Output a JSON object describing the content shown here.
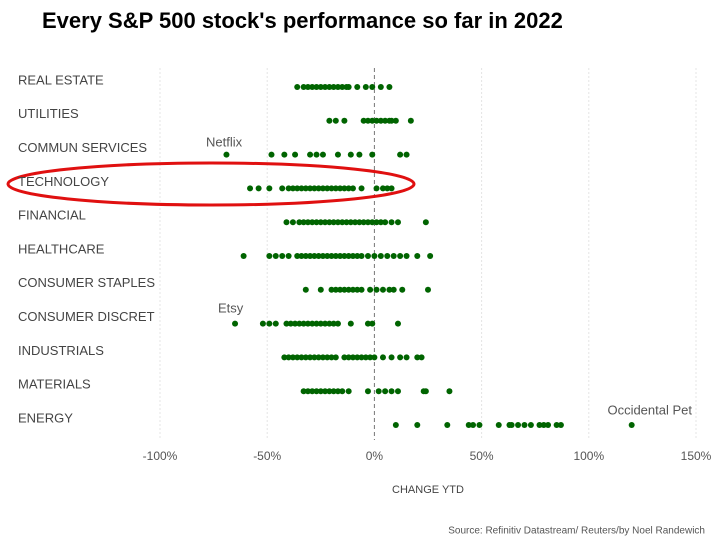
{
  "chart_data": {
    "type": "strip",
    "title": "Every S&P 500 stock's performance so far in 2022",
    "x_label": "CHANGE YTD",
    "source": "Source: Refinitiv Datastream/ Reuters/by Noel Randewich",
    "color": "#006400",
    "categories": [
      "REAL ESTATE",
      "UTILITIES",
      "COMMUN SERVICES",
      "TECHNOLOGY",
      "FINANCIAL",
      "HEALTHCARE",
      "CONSUMER STAPLES",
      "CONSUMER DISCRET",
      "INDUSTRIALS",
      "MATERIALS",
      "ENERGY"
    ],
    "values": [
      [
        -36,
        -33,
        -31,
        -29,
        -27,
        -25,
        -23,
        -21,
        -19,
        -17,
        -15,
        -13,
        -12,
        -8,
        -4,
        -1,
        3,
        7
      ],
      [
        -21,
        -18,
        -14,
        -5,
        -3,
        -1,
        1,
        3,
        5,
        7,
        8,
        10,
        17
      ],
      [
        -69,
        -48,
        -42,
        -37,
        -30,
        -27,
        -24,
        -17,
        -11,
        -7,
        -1,
        12,
        15
      ],
      [
        -58,
        -54,
        -49,
        -43,
        -40,
        -38,
        -36,
        -34,
        -32,
        -30,
        -28,
        -26,
        -24,
        -22,
        -20,
        -18,
        -16,
        -14,
        -12,
        -10,
        -6,
        1,
        4,
        6,
        8
      ],
      [
        -41,
        -38,
        -35,
        -33,
        -31,
        -29,
        -27,
        -25,
        -23,
        -21,
        -19,
        -17,
        -15,
        -13,
        -11,
        -9,
        -7,
        -5,
        -3,
        -1,
        1,
        3,
        5,
        8,
        11,
        24
      ],
      [
        -61,
        -49,
        -46,
        -43,
        -40,
        -36,
        -34,
        -32,
        -30,
        -28,
        -26,
        -24,
        -22,
        -20,
        -18,
        -16,
        -14,
        -12,
        -10,
        -8,
        -6,
        -3,
        0,
        3,
        6,
        9,
        12,
        15,
        20,
        26
      ],
      [
        -32,
        -25,
        -20,
        -18,
        -16,
        -14,
        -12,
        -10,
        -8,
        -6,
        -2,
        1,
        4,
        7,
        9,
        13,
        25
      ],
      [
        -65,
        -52,
        -49,
        -46,
        -41,
        -39,
        -37,
        -35,
        -33,
        -31,
        -29,
        -27,
        -25,
        -23,
        -21,
        -19,
        -17,
        -11,
        -3,
        -1,
        11
      ],
      [
        -42,
        -40,
        -38,
        -36,
        -34,
        -32,
        -30,
        -28,
        -26,
        -24,
        -22,
        -20,
        -18,
        -14,
        -12,
        -10,
        -8,
        -6,
        -4,
        -2,
        0,
        4,
        8,
        12,
        15,
        20,
        22
      ],
      [
        -33,
        -31,
        -29,
        -27,
        -25,
        -23,
        -21,
        -19,
        -17,
        -15,
        -12,
        -3,
        2,
        5,
        8,
        11,
        23,
        24,
        35
      ],
      [
        10,
        20,
        34,
        44,
        46,
        49,
        58,
        63,
        64,
        67,
        70,
        73,
        77,
        79,
        81,
        85,
        87,
        120
      ]
    ],
    "annotations": [
      "Netflix",
      "Etsy",
      "Occidental Pet"
    ],
    "xlim": [
      -100,
      150
    ],
    "xticks": [
      {
        "value": -100,
        "label": "-100%"
      },
      {
        "value": -50,
        "label": "-50%"
      },
      {
        "value": 0,
        "label": "0%"
      },
      {
        "value": 50,
        "label": "50%"
      },
      {
        "value": 100,
        "label": "100%"
      },
      {
        "value": 150,
        "label": "150%"
      }
    ],
    "grid": true
  }
}
